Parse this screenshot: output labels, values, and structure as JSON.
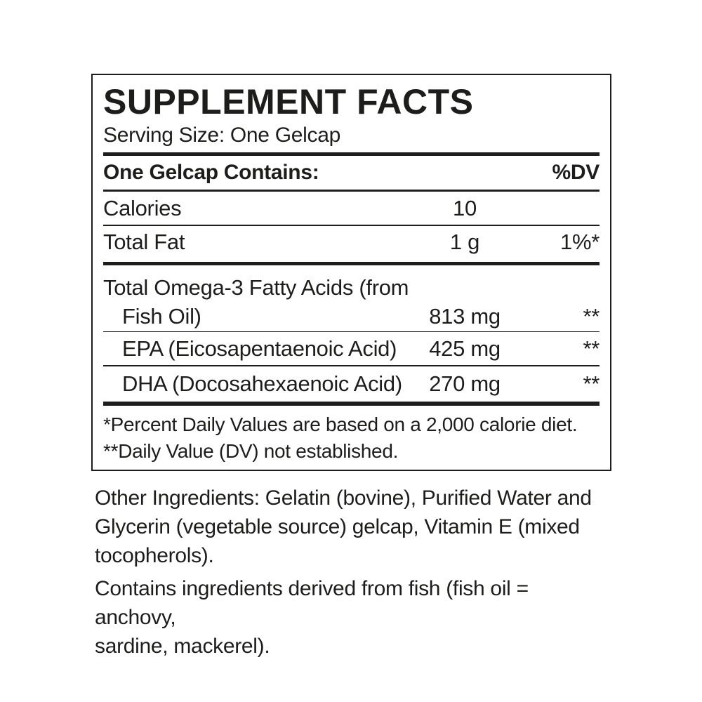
{
  "panel": {
    "title": "SUPPLEMENT FACTS",
    "serving_size": "Serving Size: One Gelcap",
    "header": {
      "contains_label": "One Gelcap Contains:",
      "dv_label": "%DV"
    },
    "rows": [
      {
        "name": "Calories",
        "amount": "10",
        "dv": ""
      },
      {
        "name": "Total Fat",
        "amount": "1 g",
        "dv": "1%*"
      },
      {
        "name_line1": "Total Omega-3 Fatty Acids (from",
        "name_line2": "Fish Oil)",
        "amount": "813 mg",
        "dv": "**"
      },
      {
        "name": "EPA (Eicosapentaenoic Acid)",
        "amount": "425 mg",
        "dv": "**"
      },
      {
        "name": "DHA (Docosahexaenoic Acid)",
        "amount": "270 mg",
        "dv": "**"
      }
    ],
    "footnotes": [
      "*Percent Daily Values are based on a 2,000 calorie diet.",
      "**Daily Value (DV) not established."
    ]
  },
  "other_ingredients": {
    "lines": [
      "Other Ingredients: Gelatin (bovine), Purified Water and",
      "Glycerin (vegetable source) gelcap, Vitamin E (mixed",
      "tocopherols)."
    ]
  },
  "allergen_statement": {
    "lines": [
      "Contains ingredients derived from fish (fish oil = anchovy,",
      "sardine, mackerel)."
    ]
  },
  "colors": {
    "text": "#1d1d1b",
    "background": "#ffffff"
  }
}
